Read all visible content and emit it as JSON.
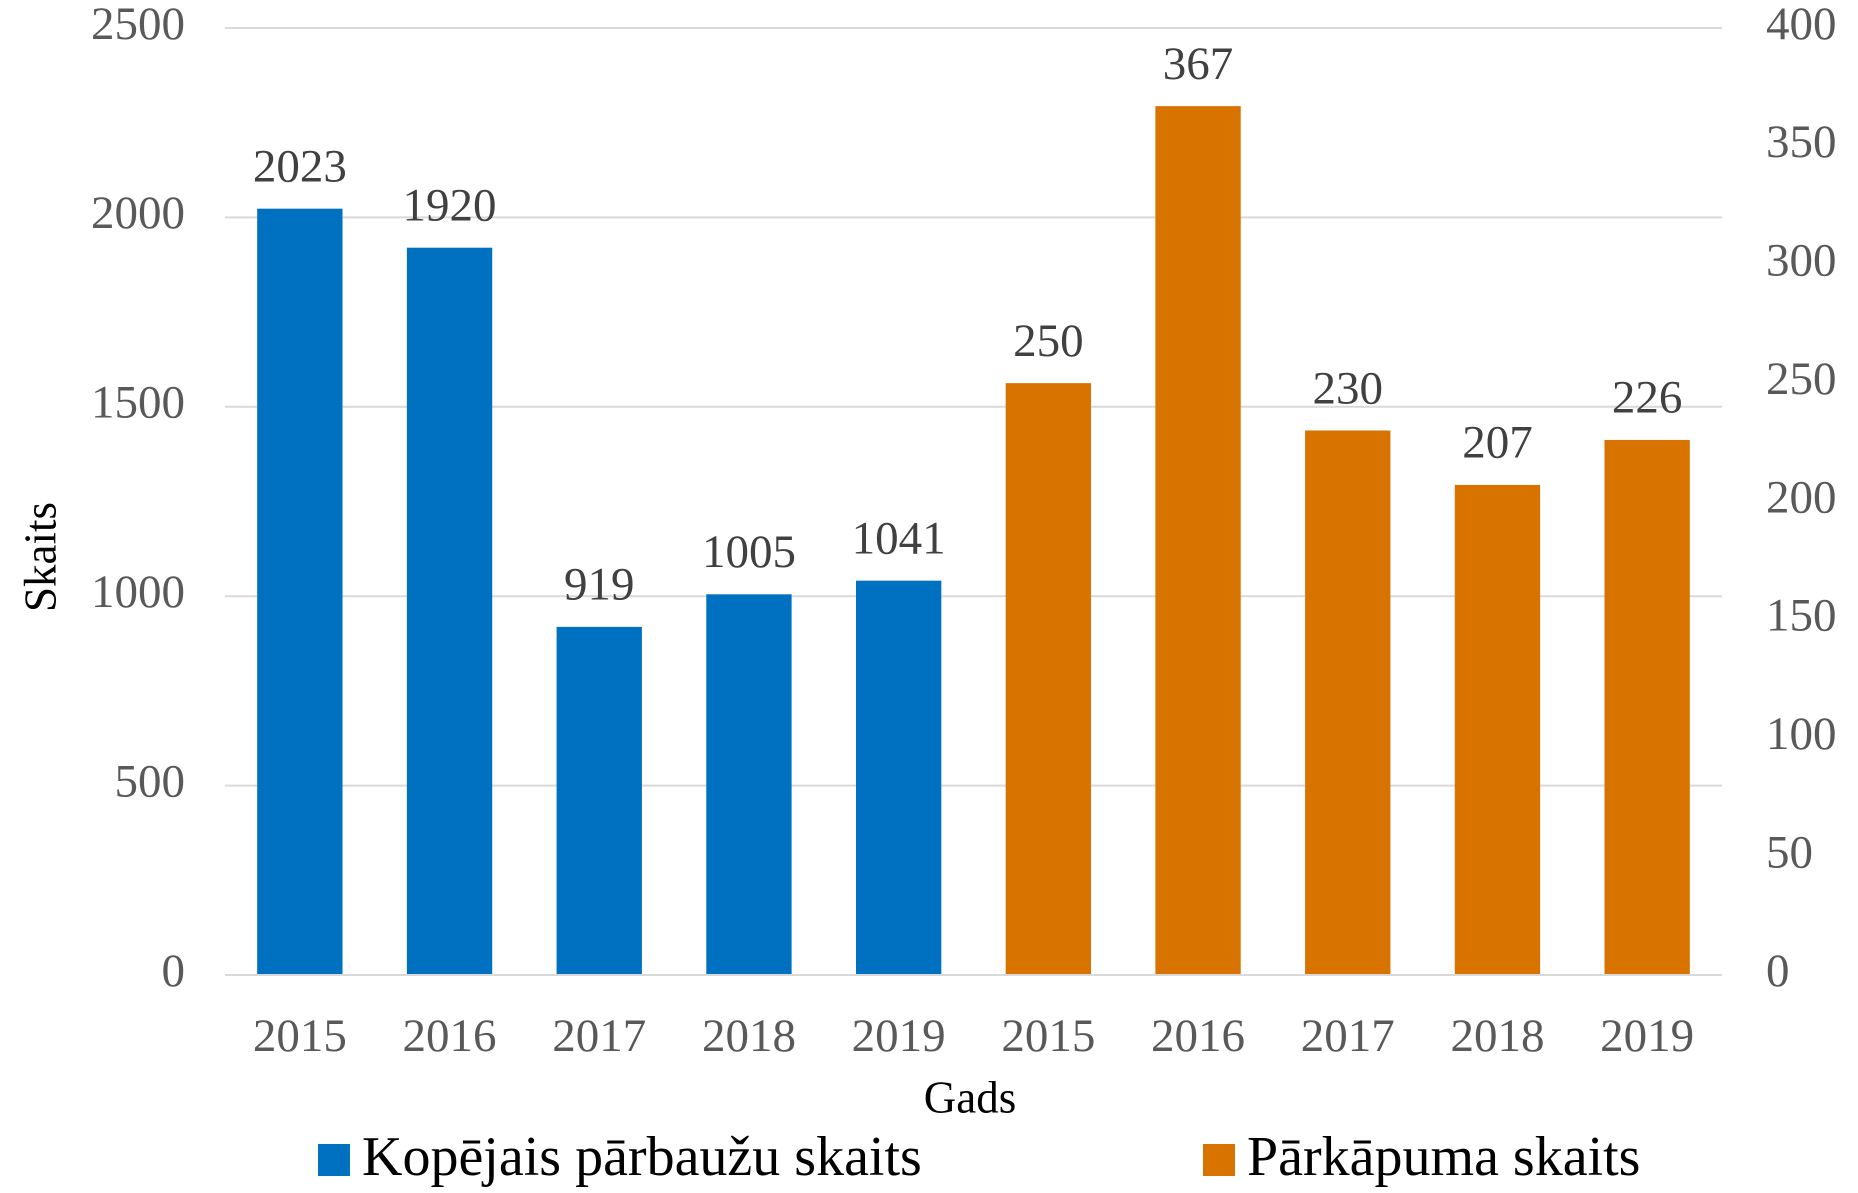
{
  "chart_data": {
    "type": "bar",
    "categories": [
      "2015",
      "2016",
      "2017",
      "2018",
      "2019",
      "2015",
      "2016",
      "2017",
      "2018",
      "2019"
    ],
    "series": [
      {
        "name": "Kopējais pārbaužu skaits",
        "color": "#0070C0",
        "axis": "y",
        "values": [
          2023,
          1920,
          919,
          1005,
          1041,
          null,
          null,
          null,
          null,
          null
        ]
      },
      {
        "name": "Pārkāpuma skaits",
        "color": "#D97300",
        "axis": "y2",
        "values": [
          null,
          null,
          null,
          null,
          null,
          250,
          367,
          230,
          207,
          226
        ]
      }
    ],
    "xlabel": "Gads",
    "ylabel": "Skaits",
    "ylim": [
      0,
      2500
    ],
    "yticks": [
      0,
      500,
      1000,
      1500,
      2000,
      2500
    ],
    "y2lim": [
      0,
      400
    ],
    "y2ticks": [
      0,
      50,
      100,
      150,
      200,
      250,
      300,
      350,
      400
    ],
    "grid": true,
    "legend": "bottom"
  }
}
